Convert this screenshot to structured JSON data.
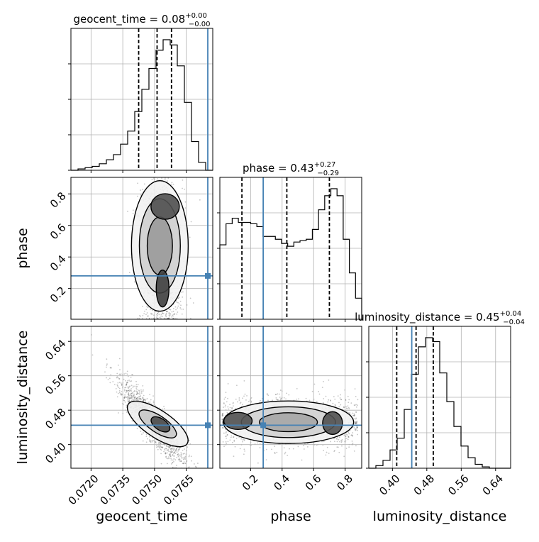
{
  "chart_data": {
    "type": "corner",
    "truth_color": "#4682b4",
    "parameters": [
      {
        "key": "geocent_time",
        "label": "geocent_time",
        "range": [
          0.07105,
          0.07775
        ],
        "truth": 0.07775,
        "ticks": [
          {
            "value": 0.072,
            "label": "0.0720"
          },
          {
            "value": 0.0735,
            "label": "0.0735"
          },
          {
            "value": 0.075,
            "label": "0.0750"
          },
          {
            "value": 0.0765,
            "label": "0.0765"
          }
        ],
        "title_main": "geocent_time = 0.08",
        "title_sup": "+0.00",
        "title_sub": "−0.00",
        "quantiles": [
          0.07425,
          0.07512,
          0.0758
        ]
      },
      {
        "key": "phase",
        "label": "phase",
        "range": [
          0.005,
          0.905
        ],
        "truth": 0.28,
        "ticks": [
          {
            "value": 0.2,
            "label": "0.2"
          },
          {
            "value": 0.4,
            "label": "0.4"
          },
          {
            "value": 0.6,
            "label": "0.6"
          },
          {
            "value": 0.8,
            "label": "0.8"
          }
        ],
        "title_main": "phase = 0.43",
        "title_sup": "+0.27",
        "title_sub": "−0.29",
        "quantiles": [
          0.145,
          0.43,
          0.7
        ]
      },
      {
        "key": "luminosity_distance",
        "label": "luminosity_distance",
        "range": [
          0.345,
          0.675
        ],
        "truth": 0.445,
        "ticks": [
          {
            "value": 0.4,
            "label": "0.40"
          },
          {
            "value": 0.48,
            "label": "0.48"
          },
          {
            "value": 0.56,
            "label": "0.56"
          },
          {
            "value": 0.64,
            "label": "0.64"
          }
        ],
        "title_main": "luminosity_distance = 0.45",
        "title_sup": "+0.04",
        "title_sub": "−0.04",
        "quantiles": [
          0.41,
          0.455,
          0.495
        ]
      }
    ],
    "histograms": {
      "geocent_time": {
        "edges_range": [
          0.07105,
          0.07775
        ],
        "counts": [
          0.0,
          0.01,
          0.02,
          0.03,
          0.05,
          0.08,
          0.12,
          0.2,
          0.3,
          0.45,
          0.62,
          0.78,
          0.92,
          1.0,
          0.96,
          0.8,
          0.52,
          0.22,
          0.06,
          0.0
        ]
      },
      "phase": {
        "edges_range": [
          0.005,
          0.905
        ],
        "counts": [
          0.53,
          0.68,
          0.72,
          0.69,
          0.69,
          0.68,
          0.66,
          0.59,
          0.59,
          0.57,
          0.54,
          0.52,
          0.55,
          0.56,
          0.57,
          0.64,
          0.78,
          0.88,
          0.93,
          0.88,
          0.57,
          0.33,
          0.15
        ]
      },
      "luminosity_distance": {
        "edges_range": [
          0.345,
          0.675
        ],
        "counts": [
          0.0,
          0.02,
          0.06,
          0.14,
          0.23,
          0.45,
          0.72,
          0.93,
          1.0,
          0.97,
          0.73,
          0.51,
          0.32,
          0.17,
          0.08,
          0.03,
          0.01,
          0.0,
          0.0,
          0.0
        ]
      }
    },
    "grid": true
  }
}
